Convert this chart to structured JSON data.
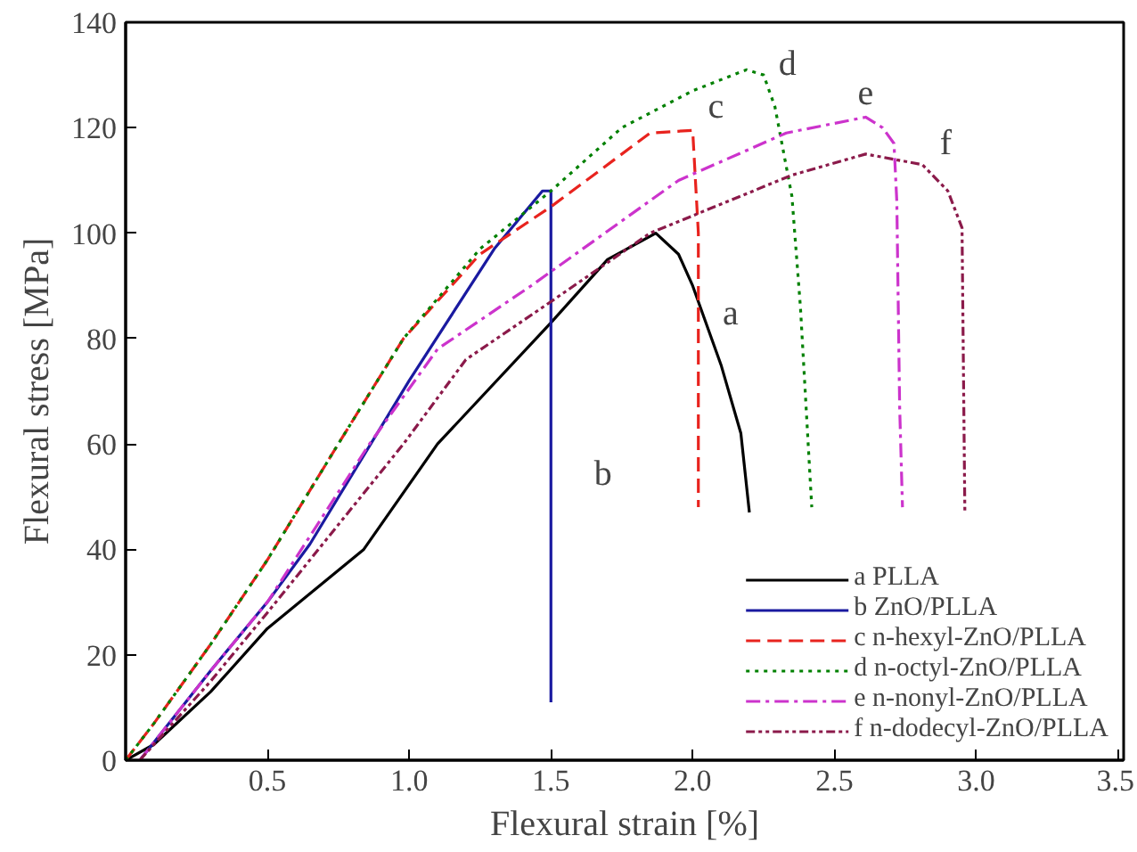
{
  "chart_data": {
    "type": "line",
    "xlabel": "Flexural strain [%]",
    "ylabel": "Flexural stress [MPa]",
    "xlim": [
      0,
      3.52
    ],
    "ylim": [
      0,
      140
    ],
    "xticks": [
      0.5,
      {
        "value": 1,
        "label": "1.0"
      },
      1.5,
      {
        "value": 2,
        "label": "2.0"
      },
      2.5,
      {
        "value": 3,
        "label": "3.0"
      },
      3.5
    ],
    "yticks": [
      0,
      20,
      40,
      60,
      80,
      100,
      120,
      140
    ],
    "grid": false,
    "legend": "bottom right",
    "marker": "none",
    "series": [
      {
        "name": "a PLLA",
        "color": "#000000",
        "line_style": "solid",
        "x": [
          0,
          0.1,
          0.3,
          0.5,
          0.84,
          1.1,
          1.5,
          1.7,
          1.87,
          1.95,
          2.0,
          2.1,
          2.17,
          2.2
        ],
        "values": [
          0,
          3,
          13,
          25,
          40,
          60,
          83,
          95,
          100,
          96,
          90,
          75,
          62,
          47
        ]
      },
      {
        "name": "b ZnO/PLLA",
        "color": "#1a1aa0",
        "line_style": "solid",
        "x": [
          0.05,
          0.3,
          0.5,
          0.65,
          1.0,
          1.3,
          1.47,
          1.5,
          1.5
        ],
        "values": [
          0,
          17,
          30,
          41,
          72,
          97,
          108,
          108,
          11
        ]
      },
      {
        "name": "c n-hexyl-ZnO/PLLA",
        "color": "#e8231e",
        "line_style": "dashed",
        "x": [
          0,
          0.1,
          0.3,
          0.5,
          0.75,
          0.98,
          1.25,
          1.5,
          1.75,
          1.85,
          2.0,
          2.02,
          2.02
        ],
        "values": [
          0,
          7,
          22,
          38,
          60,
          80,
          96,
          105,
          115,
          119,
          119.5,
          100,
          48
        ]
      },
      {
        "name": "d n-octyl-ZnO/PLLA",
        "color": "#008000",
        "line_style": "dotted",
        "x": [
          0,
          0.1,
          0.3,
          0.5,
          0.75,
          0.98,
          1.25,
          1.5,
          1.75,
          2.0,
          2.19,
          2.25,
          2.29,
          2.35,
          2.38,
          2.42
        ],
        "values": [
          0,
          7,
          22,
          38,
          60,
          80,
          97,
          108,
          120,
          127,
          131,
          130,
          124,
          107,
          86,
          48
        ]
      },
      {
        "name": "e n-nonyl-ZnO/PLLA",
        "color": "#cc33cc",
        "line_style": "dashdot",
        "x": [
          0.05,
          0.3,
          0.5,
          0.86,
          1.1,
          1.43,
          1.95,
          2.33,
          2.61,
          2.67,
          2.71,
          2.72,
          2.73,
          2.74
        ],
        "values": [
          0,
          17,
          30,
          60,
          78,
          90,
          110,
          119,
          122,
          120,
          117,
          106,
          67,
          48
        ]
      },
      {
        "name": "f n-dodecyl-ZnO/PLLA",
        "color": "#8b1a4a",
        "line_style": "dashdotdot",
        "x": [
          0.05,
          0.3,
          0.5,
          0.98,
          1.2,
          1.5,
          1.85,
          2.35,
          2.61,
          2.81,
          2.9,
          2.95,
          2.96
        ],
        "values": [
          0,
          15,
          28,
          60,
          76,
          87,
          100,
          111,
          115,
          113,
          108,
          101,
          47
        ]
      }
    ],
    "annotations": [
      "a",
      "b",
      "c",
      "d",
      "e",
      "f"
    ]
  }
}
